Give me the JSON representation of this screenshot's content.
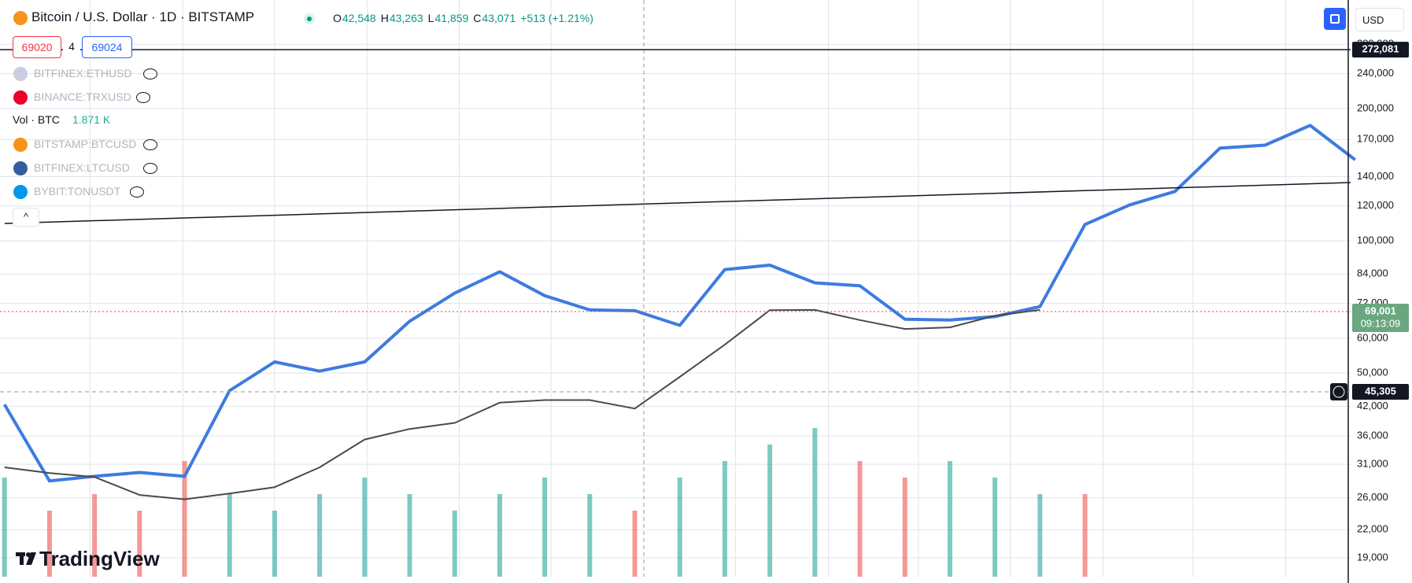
{
  "header": {
    "symbol": "Bitcoin / U.S. Dollar · 1D · BITSTAMP",
    "ohlc": [
      {
        "label": "O",
        "value": "42,548"
      },
      {
        "label": "H",
        "value": "43,263"
      },
      {
        "label": "L",
        "value": "41,859"
      },
      {
        "label": "C",
        "value": "43,071"
      }
    ],
    "change": "+513 (+1.21%)",
    "currency": "USD"
  },
  "toolbar": {
    "sell": "69020",
    "spread": "4",
    "buy": "69024"
  },
  "legend": [
    "BITFINEX:ETHUSD",
    "BINANCE:TRXUSD",
    "BITSTAMP:BTCUSD",
    "BITFINEX:LTCUSD",
    "BYBIT:TONUSDT"
  ],
  "volume_legend": {
    "label": "Vol · BTC",
    "value": "1.871 K"
  },
  "logo": "TradingView",
  "chart_data": {
    "type": "line",
    "log_scale": true,
    "grid": true,
    "categories": [
      null,
      null,
      null,
      null,
      null,
      null,
      null,
      null,
      null,
      null,
      null,
      null,
      null,
      null,
      null,
      null,
      null,
      null,
      null,
      null,
      null,
      null,
      null,
      null,
      null,
      null,
      null,
      null,
      null,
      null,
      null
    ],
    "ylim": [
      17200,
      353000
    ],
    "yticks": [
      {
        "value": 19000,
        "label": "19,000"
      },
      {
        "value": 22000,
        "label": "22,000"
      },
      {
        "value": 26000,
        "label": "26,000"
      },
      {
        "value": 31000,
        "label": "31,000"
      },
      {
        "value": 36000,
        "label": "36,000"
      },
      {
        "value": 42000,
        "label": "42,000"
      },
      {
        "value": 50000,
        "label": "50,000"
      },
      {
        "value": 60000,
        "label": "60,000"
      },
      {
        "value": 72000,
        "label": "72,000"
      },
      {
        "value": 84000,
        "label": "84,000"
      },
      {
        "value": 100000,
        "label": "100,000"
      },
      {
        "value": 120000,
        "label": "120,000"
      },
      {
        "value": 140000,
        "label": "140,000"
      },
      {
        "value": 170000,
        "label": "170,000"
      },
      {
        "value": 200000,
        "label": "200,000"
      },
      {
        "value": 240000,
        "label": "240,000"
      },
      {
        "value": 280000,
        "label": "280,000"
      }
    ],
    "series": [
      {
        "color": "#3d7be0",
        "values": [
          42400,
          28400,
          29100,
          29700,
          29100,
          45600,
          53000,
          50500,
          53000,
          65600,
          76000,
          85000,
          75000,
          69600,
          69300,
          64200,
          86000,
          88000,
          80200,
          79000,
          66300,
          66000,
          67200,
          70800,
          108900,
          120700,
          129500,
          162500,
          165000,
          183000,
          152900
        ]
      },
      {
        "color": "#4a4a4a",
        "values": [
          30500,
          29600,
          29000,
          26400,
          25800,
          26600,
          27500,
          30500,
          35300,
          37300,
          38500,
          42800,
          43400,
          43400,
          41500,
          49000,
          58000,
          69500,
          69600,
          66000,
          63000,
          63500,
          67500,
          69600,
          null,
          null,
          null,
          null,
          null,
          null,
          null
        ]
      }
    ],
    "volume": {
      "values": [
        6,
        4,
        5,
        4,
        7,
        5,
        4,
        5,
        6,
        5,
        4,
        5,
        6,
        5,
        4,
        6,
        7,
        8,
        9,
        7,
        6,
        7,
        6,
        5,
        5,
        null,
        null,
        null,
        null,
        null,
        null
      ],
      "ylim": [
        0,
        10
      ],
      "up_color": "#26a69a",
      "down_color": "#ef5350"
    },
    "price_lines": [
      {
        "value": 272081,
        "label": "272,081",
        "color": "#131722"
      },
      {
        "value": 69001,
        "label": "69,001",
        "countdown": "09:13:09",
        "color": "#6aa77e"
      },
      {
        "value": 45305,
        "label": "45,305",
        "color": "#131722"
      }
    ]
  }
}
